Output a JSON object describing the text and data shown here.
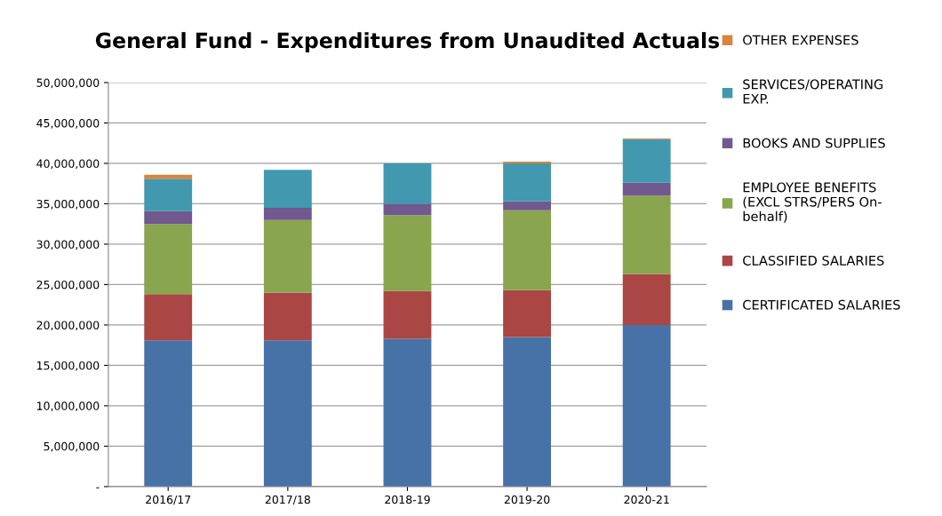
{
  "chart_data": {
    "type": "bar",
    "title": "General Fund - Expenditures from Unaudited Actuals",
    "stacked": true,
    "categories": [
      "2016/17",
      "2017/18",
      "2018-19",
      "2019-20",
      "2020-21"
    ],
    "series": [
      {
        "name": "CERTIFICATED SALARIES",
        "color": "#4672a8",
        "values": [
          18100000,
          18100000,
          18300000,
          18500000,
          20000000
        ]
      },
      {
        "name": "CLASSIFIED SALARIES",
        "color": "#aa4643",
        "values": [
          5700000,
          5900000,
          5900000,
          5800000,
          6300000
        ]
      },
      {
        "name": "EMPLOYEE BENEFITS\n(EXCL STRS/PERS On-\nbehalf)",
        "color": "#89a54e",
        "values": [
          8700000,
          9000000,
          9400000,
          9900000,
          9700000
        ]
      },
      {
        "name": "BOOKS AND SUPPLIES",
        "color": "#71588f",
        "values": [
          1600000,
          1500000,
          1400000,
          1100000,
          1600000
        ]
      },
      {
        "name": "SERVICES/OPERATING\nEXP.",
        "color": "#4198af",
        "values": [
          4000000,
          4700000,
          5000000,
          4700000,
          5400000
        ]
      },
      {
        "name": "OTHER EXPENSES",
        "color": "#db843d",
        "values": [
          500000,
          0,
          0,
          200000,
          100000
        ]
      }
    ],
    "ylim": [
      0,
      50000000
    ],
    "yticks": [
      {
        "value": 0,
        "label": "-"
      },
      {
        "value": 5000000,
        "label": "5,000,000"
      },
      {
        "value": 10000000,
        "label": "10,000,000"
      },
      {
        "value": 15000000,
        "label": "15,000,000"
      },
      {
        "value": 20000000,
        "label": "20,000,000"
      },
      {
        "value": 25000000,
        "label": "25,000,000"
      },
      {
        "value": 30000000,
        "label": "30,000,000"
      },
      {
        "value": 35000000,
        "label": "35,000,000"
      },
      {
        "value": 40000000,
        "label": "40,000,000"
      },
      {
        "value": 45000000,
        "label": "45,000,000"
      },
      {
        "value": 50000000,
        "label": "50,000,000"
      }
    ],
    "grid": "y",
    "legend": "right"
  }
}
